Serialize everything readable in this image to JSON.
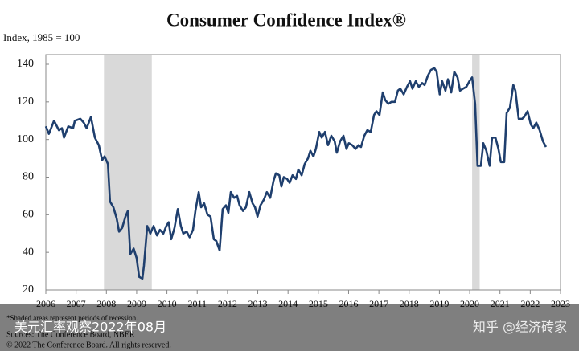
{
  "chart_data": {
    "type": "line",
    "title": "Consumer Confidence Index®",
    "y_axis_label": "Index, 1985 = 100",
    "notes": [
      "*Shaded areas represent periods of recession.",
      "Sources: The Conference Board, NBER",
      "© 2022 The Conference Board. All rights reserved."
    ],
    "overlay_caption": "美元汇率观察2022年08月",
    "watermark": "知乎 @经济砖家",
    "xlim": [
      2006,
      2023
    ],
    "xticks": [
      2006,
      2007,
      2008,
      2009,
      2010,
      2011,
      2012,
      2013,
      2014,
      2015,
      2016,
      2017,
      2018,
      2019,
      2020,
      2021,
      2022,
      2023
    ],
    "ylim": [
      20,
      140
    ],
    "yticks": [
      20,
      40,
      60,
      80,
      100,
      120,
      140
    ],
    "recessions": [
      [
        2007.92,
        2009.5
      ],
      [
        2020.08,
        2020.33
      ]
    ],
    "recession_color": "#d9d9d9",
    "series": [
      {
        "name": "Consumer Confidence Index",
        "color": "#1f3f6e",
        "x": [
          2006.0,
          2006.1,
          2006.27,
          2006.43,
          2006.53,
          2006.6,
          2006.74,
          2006.9,
          2006.96,
          2007.14,
          2007.25,
          2007.35,
          2007.49,
          2007.62,
          2007.75,
          2007.86,
          2007.94,
          2008.05,
          2008.12,
          2008.23,
          2008.34,
          2008.42,
          2008.52,
          2008.63,
          2008.71,
          2008.79,
          2008.9,
          2009.0,
          2009.08,
          2009.19,
          2009.24,
          2009.35,
          2009.45,
          2009.56,
          2009.67,
          2009.77,
          2009.88,
          2009.98,
          2010.06,
          2010.14,
          2010.25,
          2010.36,
          2010.46,
          2010.54,
          2010.65,
          2010.75,
          2010.86,
          2010.94,
          2011.05,
          2011.13,
          2011.23,
          2011.34,
          2011.44,
          2011.55,
          2011.63,
          2011.74,
          2011.84,
          2011.95,
          2012.03,
          2012.11,
          2012.22,
          2012.32,
          2012.4,
          2012.51,
          2012.61,
          2012.72,
          2012.83,
          2012.91,
          2012.99,
          2013.09,
          2013.2,
          2013.3,
          2013.41,
          2013.52,
          2013.6,
          2013.71,
          2013.78,
          2013.86,
          2013.97,
          2014.05,
          2014.15,
          2014.26,
          2014.34,
          2014.45,
          2014.55,
          2014.66,
          2014.74,
          2014.84,
          2014.92,
          2015.03,
          2015.11,
          2015.22,
          2015.32,
          2015.43,
          2015.54,
          2015.61,
          2015.72,
          2015.83,
          2015.93,
          2016.01,
          2016.12,
          2016.23,
          2016.33,
          2016.41,
          2016.52,
          2016.62,
          2016.73,
          2016.84,
          2016.92,
          2017.02,
          2017.13,
          2017.21,
          2017.31,
          2017.42,
          2017.53,
          2017.63,
          2017.71,
          2017.82,
          2017.93,
          2018.03,
          2018.11,
          2018.22,
          2018.32,
          2018.43,
          2018.51,
          2018.62,
          2018.72,
          2018.83,
          2018.91,
          2019.01,
          2019.09,
          2019.2,
          2019.28,
          2019.39,
          2019.49,
          2019.6,
          2019.68,
          2019.78,
          2019.89,
          2019.99,
          2020.08,
          2020.18,
          2020.26,
          2020.37,
          2020.45,
          2020.55,
          2020.66,
          2020.74,
          2020.85,
          2020.95,
          2021.03,
          2021.14,
          2021.22,
          2021.33,
          2021.44,
          2021.51,
          2021.62,
          2021.73,
          2021.8,
          2021.91,
          2022.02,
          2022.1,
          2022.2,
          2022.31,
          2022.42,
          2022.52
        ],
        "values": [
          107,
          103,
          110,
          105,
          106,
          101,
          107,
          106,
          110,
          111,
          109,
          106,
          112,
          101,
          97,
          89,
          91,
          87,
          67,
          64,
          58,
          51,
          53,
          59,
          62,
          39,
          42,
          37,
          27,
          26,
          33,
          54,
          50,
          54,
          49,
          52,
          50,
          54,
          56,
          47,
          53,
          63,
          54,
          50,
          51,
          48,
          52,
          62,
          72,
          64,
          66,
          60,
          59,
          47,
          46,
          41,
          63,
          65,
          61,
          72,
          69,
          70,
          65,
          62,
          64,
          72,
          66,
          64,
          59,
          65,
          68,
          72,
          69,
          78,
          82,
          81,
          75,
          80,
          79,
          77,
          81,
          79,
          84,
          81,
          87,
          90,
          94,
          91,
          95,
          104,
          101,
          104,
          97,
          102,
          99,
          93,
          99,
          102,
          95,
          98,
          97,
          95,
          97,
          96,
          102,
          105,
          104,
          113,
          115,
          113,
          125,
          121,
          119,
          120,
          120,
          126,
          127,
          124,
          128,
          131,
          127,
          131,
          128,
          130,
          129,
          134,
          137,
          138,
          136,
          124,
          131,
          126,
          132,
          125,
          136,
          133,
          126,
          127,
          128,
          131,
          133,
          119,
          86,
          86,
          98,
          94,
          86,
          101,
          101,
          95,
          88,
          88,
          114,
          117,
          129,
          126,
          111,
          111,
          112,
          115,
          108,
          106,
          109,
          105,
          99,
          96
        ]
      }
    ]
  }
}
